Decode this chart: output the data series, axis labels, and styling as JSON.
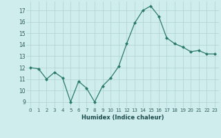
{
  "x": [
    0,
    1,
    2,
    3,
    4,
    5,
    6,
    7,
    8,
    9,
    10,
    11,
    12,
    13,
    14,
    15,
    16,
    17,
    18,
    19,
    20,
    21,
    22,
    23
  ],
  "y": [
    12.0,
    11.9,
    11.0,
    11.6,
    11.1,
    9.0,
    10.8,
    10.2,
    9.0,
    10.4,
    11.1,
    12.1,
    14.1,
    15.9,
    17.0,
    17.4,
    16.5,
    14.6,
    14.1,
    13.8,
    13.4,
    13.5,
    13.2,
    13.2
  ],
  "line_color": "#2a7a6a",
  "marker_color": "#2a7a6a",
  "bg_color": "#d0eded",
  "grid_color": "#b0d0d0",
  "xlabel": "Humidex (Indice chaleur)",
  "ylim": [
    8.5,
    17.8
  ],
  "xlim": [
    -0.5,
    23.5
  ],
  "yticks": [
    9,
    10,
    11,
    12,
    13,
    14,
    15,
    16,
    17
  ],
  "xticks": [
    0,
    1,
    2,
    3,
    4,
    5,
    6,
    7,
    8,
    9,
    10,
    11,
    12,
    13,
    14,
    15,
    16,
    17,
    18,
    19,
    20,
    21,
    22,
    23
  ],
  "xtick_labels": [
    "0",
    "1",
    "2",
    "3",
    "4",
    "5",
    "6",
    "7",
    "8",
    "9",
    "10",
    "11",
    "12",
    "13",
    "14",
    "15",
    "16",
    "17",
    "18",
    "19",
    "20",
    "21",
    "22",
    "23"
  ]
}
